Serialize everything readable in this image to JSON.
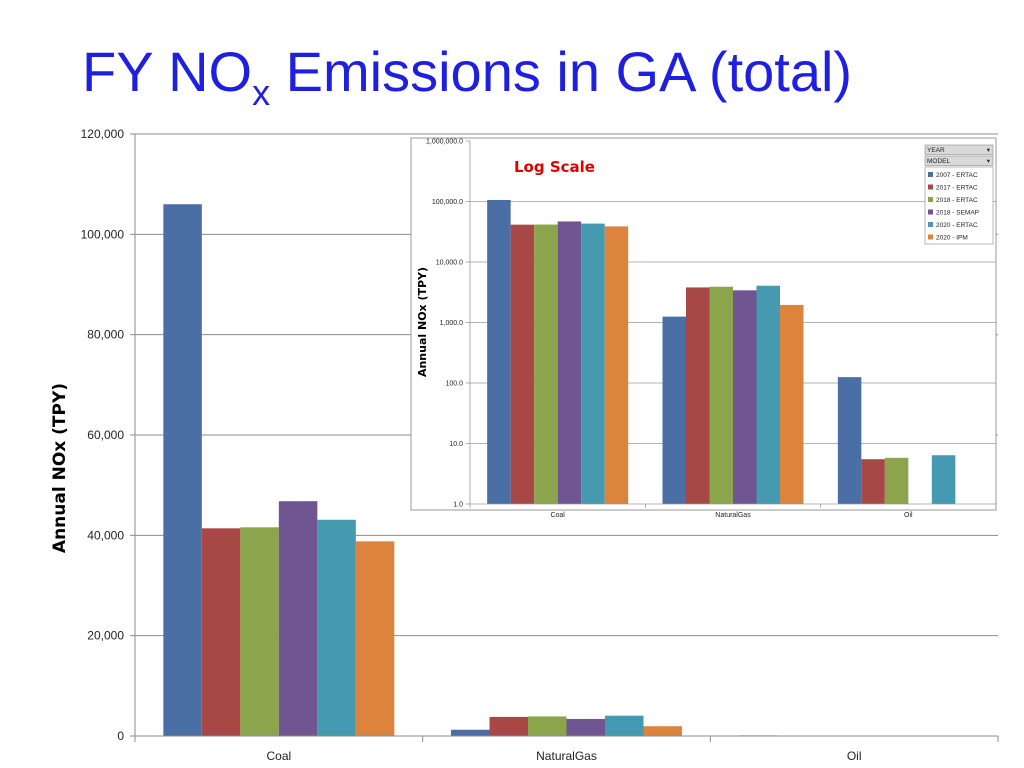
{
  "slide": {
    "title_main": "FY NO",
    "title_sub": "x",
    "title_rest": " Emissions in GA (total)",
    "title_color": "#1f1fe0"
  },
  "series_colors": [
    "#4a6fa5",
    "#a84846",
    "#8aa54c",
    "#6f5592",
    "#4599b0",
    "#dc843d"
  ],
  "chart_data": [
    {
      "type": "bar",
      "categories": [
        "Coal",
        "NaturalGas",
        "Oil"
      ],
      "ylabel": "Annual NOx (TPY)",
      "xlabel": "",
      "ylim": [
        0,
        120000
      ],
      "yticks": [
        0,
        20000,
        40000,
        60000,
        80000,
        100000,
        120000
      ],
      "ytick_labels": [
        "0",
        "20,000",
        "40,000",
        "60,000",
        "80,000",
        "100,000",
        "120,000"
      ],
      "grid": true,
      "series": [
        {
          "name": "2007 - ERTAC",
          "values": [
            106000,
            1250,
            125
          ]
        },
        {
          "name": "2017 - ERTAC",
          "values": [
            41400,
            3800,
            5.5
          ]
        },
        {
          "name": "2018 - ERTAC",
          "values": [
            41600,
            3900,
            5.8
          ]
        },
        {
          "name": "2018 - SEMAP",
          "values": [
            46800,
            3400,
            null
          ]
        },
        {
          "name": "2020 - ERTAC",
          "values": [
            43100,
            4050,
            6.4
          ]
        },
        {
          "name": "2020 - IPM",
          "values": [
            38800,
            1950,
            null
          ]
        }
      ]
    },
    {
      "type": "bar",
      "scale": "log",
      "annotation": "Log Scale",
      "categories": [
        "Coal",
        "NaturalGas",
        "Oil"
      ],
      "ylabel": "Annual NOx (TPY)",
      "xlabel": "",
      "ylim": [
        1,
        1000000
      ],
      "yticks": [
        1,
        10,
        100,
        1000,
        10000,
        100000,
        1000000
      ],
      "ytick_labels": [
        "1.0",
        "10.0",
        "100.0",
        "1,000.0",
        "10,000.0",
        "100,000.0",
        "1,000,000.0"
      ],
      "grid": true,
      "legend_position": "top-right",
      "legend_filters": [
        "YEAR",
        "MODEL"
      ],
      "series": [
        {
          "name": "2007 - ERTAC",
          "values": [
            106000,
            1250,
            125
          ]
        },
        {
          "name": "2017 - ERTAC",
          "values": [
            41400,
            3800,
            5.5
          ]
        },
        {
          "name": "2018 - ERTAC",
          "values": [
            41600,
            3900,
            5.8
          ]
        },
        {
          "name": "2018 - SEMAP",
          "values": [
            46800,
            3400,
            null
          ]
        },
        {
          "name": "2020 - ERTAC",
          "values": [
            43100,
            4050,
            6.4
          ]
        },
        {
          "name": "2020 - IPM",
          "values": [
            38800,
            1950,
            null
          ]
        }
      ]
    }
  ]
}
